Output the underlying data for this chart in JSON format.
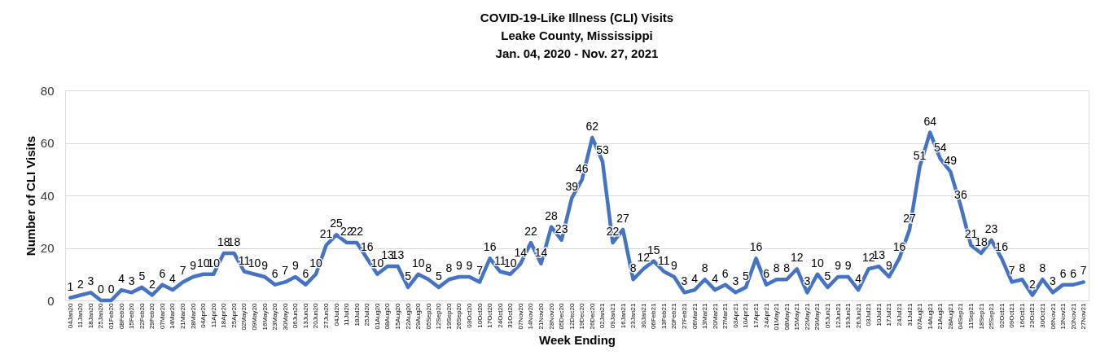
{
  "chart_data": {
    "type": "line",
    "title": "COVID-19-Like Illness (CLI) Visits\nLeake County, Mississippi\nJan. 04, 2020 - Nov. 27, 2021",
    "xlabel": "Week Ending",
    "ylabel": "Number of CLI Visits",
    "categories": [
      "04Jan20",
      "11Jan20",
      "18Jan20",
      "25Jan20",
      "01Feb20",
      "08Feb20",
      "15Feb20",
      "22Feb20",
      "29Feb20",
      "07Mar20",
      "14Mar20",
      "21Mar20",
      "28Mar20",
      "04Apr20",
      "11Apr20",
      "18Apr20",
      "25Apr20",
      "02May20",
      "09May20",
      "16May20",
      "23May20",
      "30May20",
      "06Jun20",
      "13Jun20",
      "20Jun20",
      "27Jun20",
      "04Jul20",
      "11Jul20",
      "18Jul20",
      "25Jul20",
      "01Aug20",
      "08Aug20",
      "15Aug20",
      "22Aug20",
      "29Aug20",
      "05Sep20",
      "12Sep20",
      "19Sep20",
      "26Sep20",
      "03Oct20",
      "10Oct20",
      "17Oct20",
      "24Oct20",
      "31Oct20",
      "07Nov20",
      "14Nov20",
      "21Nov20",
      "28Nov20",
      "05Dec20",
      "12Dec20",
      "19Dec20",
      "26Dec20",
      "02Jan21",
      "09Jan21",
      "16Jan21",
      "23Jan21",
      "30Jan21",
      "06Feb21",
      "13Feb21",
      "20Feb21",
      "27Feb21",
      "06Mar21",
      "13Mar21",
      "20Mar21",
      "27Mar21",
      "03Apr21",
      "10Apr21",
      "17Apr21",
      "24Apr21",
      "01May21",
      "08May21",
      "15May21",
      "22May21",
      "29May21",
      "05Jun21",
      "12Jun21",
      "19Jun21",
      "26Jun21",
      "03Jul21",
      "10Jul21",
      "17Jul21",
      "24Jul21",
      "31Jul21",
      "07Aug21",
      "14Aug21",
      "21Aug21",
      "28Aug21",
      "04Sep21",
      "11Sep21",
      "18Sep21",
      "25Sep21",
      "02Oct21",
      "09Oct21",
      "16Oct21",
      "23Oct21",
      "30Oct21",
      "06Nov21",
      "13Nov21",
      "20Nov21",
      "27Nov21"
    ],
    "series": [
      {
        "color": "#4472c4",
        "values": [
          1,
          2,
          3,
          0,
          0,
          4,
          3,
          5,
          2,
          6,
          4,
          7,
          9,
          10,
          10,
          18,
          18,
          11,
          10,
          9,
          6,
          7,
          9,
          6,
          10,
          21,
          25,
          22,
          22,
          16,
          10,
          13,
          13,
          5,
          10,
          8,
          5,
          8,
          9,
          9,
          7,
          16,
          11,
          10,
          14,
          22,
          14,
          28,
          23,
          39,
          46,
          62,
          53,
          22,
          27,
          8,
          12,
          15,
          11,
          9,
          3,
          4,
          8,
          4,
          6,
          3,
          5,
          16,
          6,
          8,
          8,
          12,
          3,
          10,
          5,
          9,
          9,
          4,
          12,
          13,
          9,
          16,
          27,
          51,
          64,
          54,
          49,
          36,
          21,
          18,
          23,
          16,
          7,
          8,
          2,
          8,
          3,
          6,
          6,
          7
        ]
      }
    ],
    "ylim": [
      0,
      80
    ],
    "yticks": [
      0,
      20,
      40,
      60,
      80
    ],
    "grid": "y",
    "data_labels": true,
    "marker": "none",
    "line_style": "solid"
  }
}
